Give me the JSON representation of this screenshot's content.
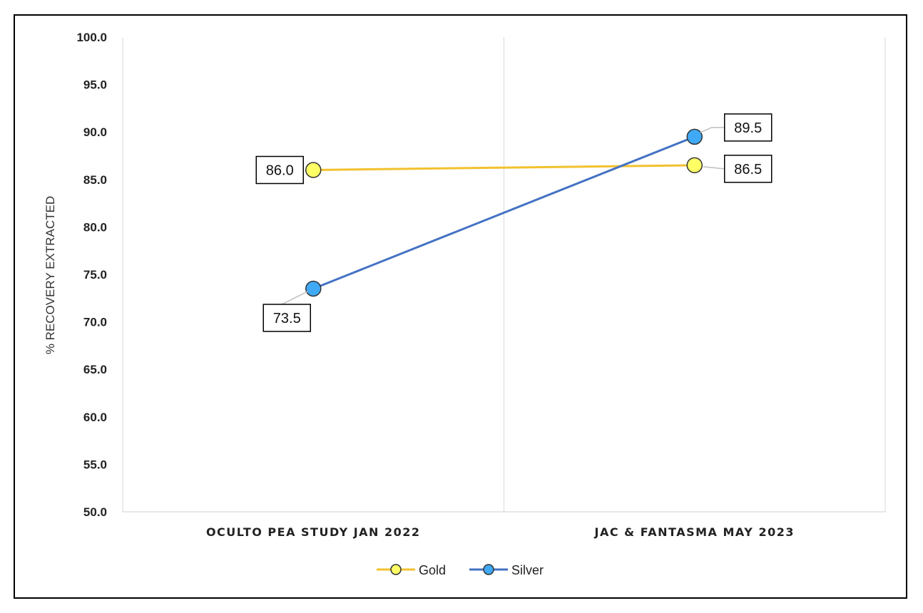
{
  "chart_data": {
    "type": "line",
    "title": "",
    "xlabel": "",
    "ylabel": "% RECOVERY EXTRACTED",
    "categories": [
      "OCULTO PEA STUDY JAN 2022",
      "JAC & FANTASMA MAY 2023"
    ],
    "ylim": [
      50.0,
      100.0
    ],
    "yticks": [
      "50.0",
      "55.0",
      "60.0",
      "65.0",
      "70.0",
      "75.0",
      "80.0",
      "85.0",
      "90.0",
      "95.0",
      "100.0"
    ],
    "grid": "vertical",
    "legend_position": "bottom",
    "series": [
      {
        "name": "Gold",
        "values": [
          86.0,
          86.5
        ],
        "labels": [
          "86.0",
          "86.5"
        ],
        "line_color": "#f2c12e",
        "marker_color": "#ffff66"
      },
      {
        "name": "Silver",
        "values": [
          73.5,
          89.5
        ],
        "labels": [
          "73.5",
          "89.5"
        ],
        "line_color": "#4472c4",
        "marker_color": "#3fa9f5"
      }
    ]
  }
}
